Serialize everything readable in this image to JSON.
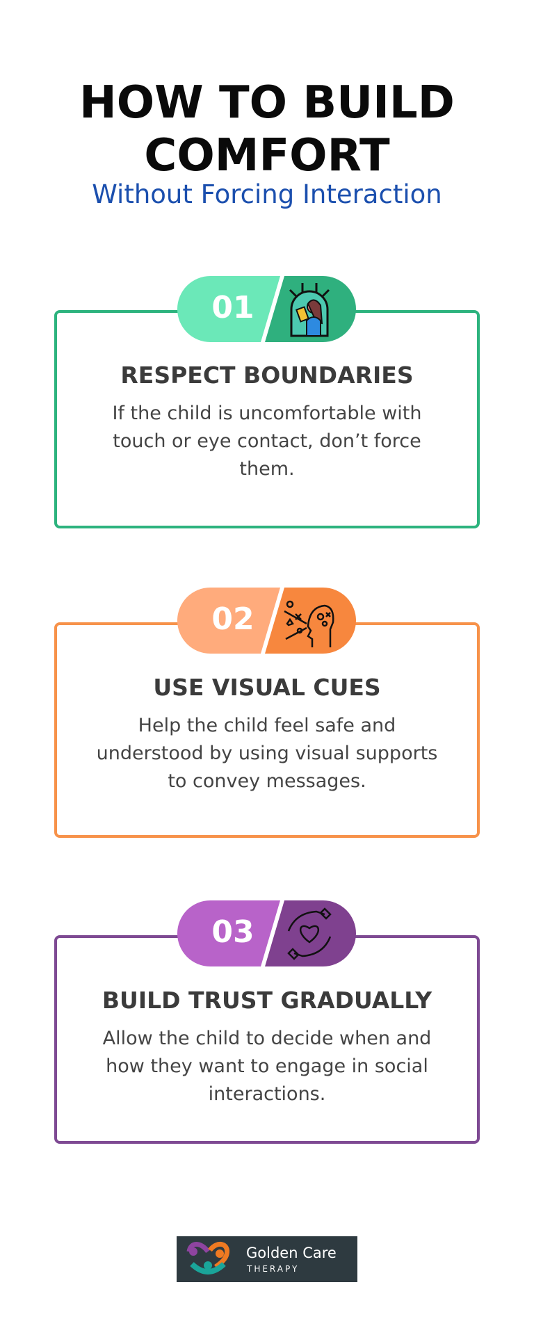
{
  "header": {
    "title_line1": "HOW TO BUILD",
    "title_line2": "COMFORT",
    "subtitle": "Without Forcing Interaction"
  },
  "steps": [
    {
      "number": "01",
      "title": "RESPECT BOUNDARIES",
      "text": "If the child is uncomfortable with touch or eye contact, don’t force them.",
      "icon": "child-reading-in-shelter-icon",
      "color": "#2db37e",
      "light": "#6be8b8",
      "dark": "#2fb07e"
    },
    {
      "number": "02",
      "title": "USE VISUAL CUES",
      "text": "Help the child feel safe and understood by using visual supports to convey messages.",
      "icon": "head-with-symbols-icon",
      "color": "#f7924a",
      "light": "#ffab7c",
      "dark": "#f7873e"
    },
    {
      "number": "03",
      "title": "BUILD TRUST GRADUALLY",
      "text": "Allow the child to decide when and how they want to engage in social interactions.",
      "icon": "hands-holding-heart-icon",
      "color": "#7e4a93",
      "light": "#b863c9",
      "dark": "#7f418f"
    }
  ],
  "logo": {
    "name": "Golden Care",
    "sub": "THERAPY"
  }
}
